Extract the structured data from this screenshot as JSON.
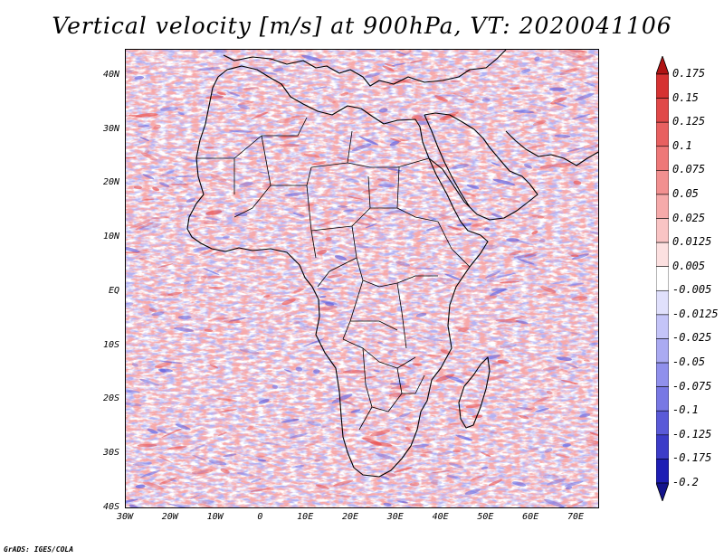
{
  "title": "Vertical velocity [m/s] at 900hPa, VT: 2020041106",
  "map": {
    "projection": "lat-lon",
    "lon_range": [
      -30,
      76
    ],
    "lat_range": [
      -40,
      46
    ],
    "y_labels": [
      "40N",
      "30N",
      "20N",
      "10N",
      "EQ",
      "10S",
      "20S",
      "30S",
      "40S"
    ],
    "x_labels": [
      "30W",
      "20W",
      "10W",
      "0",
      "10E",
      "20E",
      "30E",
      "40E",
      "50E",
      "60E",
      "70E"
    ],
    "field_colors": {
      "ascent": "#e85050",
      "descent": "#6060e0",
      "background": "#ffffff"
    }
  },
  "colorbar": {
    "labels": [
      "0.175",
      "0.15",
      "0.125",
      "0.1",
      "0.075",
      "0.05",
      "0.025",
      "0.0125",
      "0.005",
      "-0.005",
      "-0.0125",
      "-0.025",
      "-0.05",
      "-0.075",
      "-0.1",
      "-0.125",
      "-0.175",
      "-0.2"
    ],
    "colors": [
      "#c81e1e",
      "#d63232",
      "#e04848",
      "#e86060",
      "#ee7878",
      "#f29090",
      "#f6aaaa",
      "#f9c4c4",
      "#fce0e0",
      "#ffffff",
      "#e0e0fc",
      "#c4c4f8",
      "#aaaaf2",
      "#9090ec",
      "#7878e4",
      "#5a5ad8",
      "#3c3cc8",
      "#1e1eb4",
      "#0a0aa0"
    ],
    "top_arrow_color": "#b01414",
    "bottom_arrow_color": "#14148c"
  },
  "credit": "GrADS: IGES/COLA"
}
